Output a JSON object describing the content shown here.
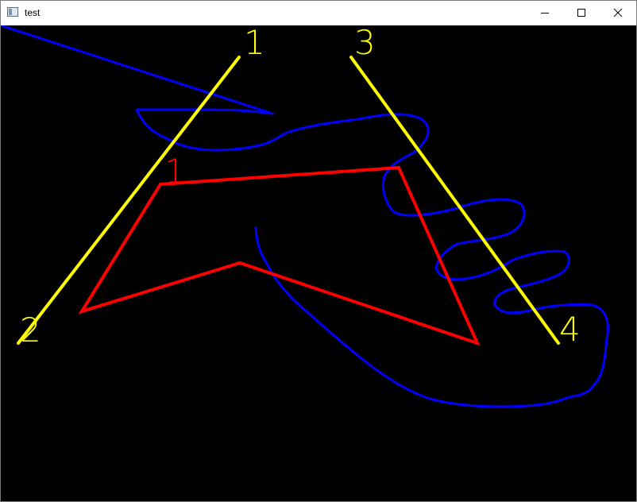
{
  "window": {
    "title": "test",
    "app_icon": "window-app-icon",
    "controls": {
      "minimize_icon": "minimize-icon",
      "maximize_icon": "maximize-icon",
      "close_icon": "close-icon"
    }
  },
  "canvas": {
    "background": "#000000",
    "colors": {
      "hand_outline": "#0000ff",
      "polygon": "#ff0000",
      "lines": "#ffff00"
    },
    "polygon_label": "1",
    "line_labels": {
      "top_left": "1",
      "bottom_left": "2",
      "top_right": "3",
      "bottom_right": "4"
    }
  }
}
